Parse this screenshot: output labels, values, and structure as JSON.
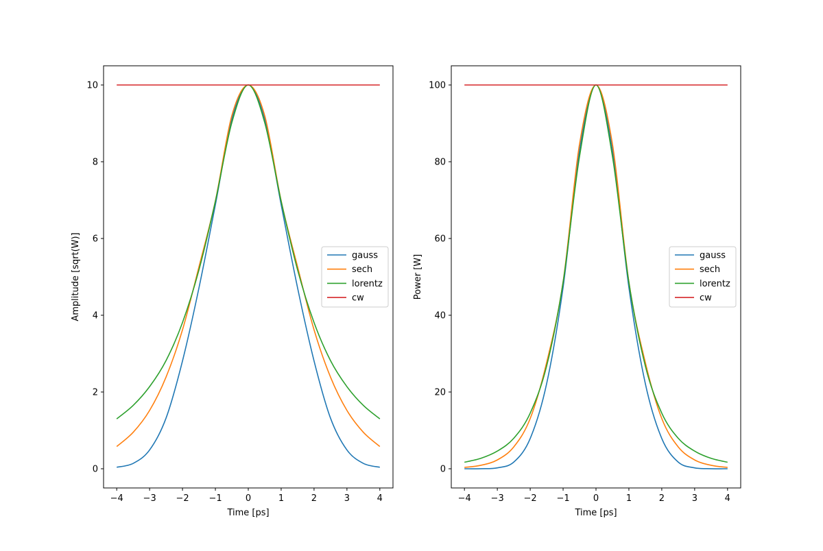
{
  "chart_data": [
    {
      "type": "line",
      "title": "",
      "xlabel": "Time [ps]",
      "ylabel": "Amplitude [sqrt(W)]",
      "xlim": [
        -4.4,
        4.4
      ],
      "ylim": [
        -0.5,
        10.5
      ],
      "xticks": [
        -4,
        -3,
        -2,
        -1,
        0,
        1,
        2,
        3,
        4
      ],
      "yticks": [
        0,
        2,
        4,
        6,
        8,
        10
      ],
      "grid": false,
      "legend_position": "center-right",
      "x": [
        -4,
        -3.5,
        -3,
        -2.5,
        -2,
        -1.5,
        -1,
        -0.5,
        0,
        0.5,
        1,
        1.5,
        2,
        2.5,
        3,
        3.5,
        4
      ],
      "series": [
        {
          "name": "gauss",
          "color": "#1f77b4",
          "values": [
            0.04,
            0.14,
            0.49,
            1.32,
            2.81,
            4.71,
            6.88,
            9.11,
            10,
            9.11,
            6.88,
            4.71,
            2.81,
            1.32,
            0.49,
            0.14,
            0.04
          ]
        },
        {
          "name": "sech",
          "color": "#ff7f0e",
          "values": [
            0.58,
            0.95,
            1.52,
            2.39,
            3.62,
            5.26,
            6.98,
            9.2,
            10,
            9.2,
            6.98,
            5.26,
            3.62,
            2.39,
            1.52,
            0.95,
            0.58
          ]
        },
        {
          "name": "lorentz",
          "color": "#2ca02c",
          "values": [
            1.3,
            1.65,
            2.14,
            2.82,
            3.81,
            5.18,
            6.97,
            9.02,
            10,
            9.02,
            6.97,
            5.18,
            3.81,
            2.82,
            2.14,
            1.65,
            1.3
          ]
        },
        {
          "name": "cw",
          "color": "#d62728",
          "values": [
            10,
            10,
            10,
            10,
            10,
            10,
            10,
            10,
            10,
            10,
            10,
            10,
            10,
            10,
            10,
            10,
            10
          ]
        }
      ]
    },
    {
      "type": "line",
      "title": "",
      "xlabel": "Time [ps]",
      "ylabel": "Power [W]",
      "xlim": [
        -4.4,
        4.4
      ],
      "ylim": [
        -5,
        105
      ],
      "xticks": [
        -4,
        -3,
        -2,
        -1,
        0,
        1,
        2,
        3,
        4
      ],
      "yticks": [
        0,
        20,
        40,
        60,
        80,
        100
      ],
      "grid": false,
      "legend_position": "center-right",
      "x": [
        -4,
        -3.5,
        -3,
        -2.5,
        -2,
        -1.5,
        -1,
        -0.5,
        0,
        0.5,
        1,
        1.5,
        2,
        2.5,
        3,
        3.5,
        4
      ],
      "series": [
        {
          "name": "gauss",
          "color": "#1f77b4",
          "values": [
            0.0,
            0.02,
            0.24,
            1.74,
            7.9,
            22.2,
            47.3,
            82.9,
            100,
            82.9,
            47.3,
            22.2,
            7.9,
            1.74,
            0.24,
            0.02,
            0.0
          ]
        },
        {
          "name": "sech",
          "color": "#ff7f0e",
          "values": [
            0.34,
            0.9,
            2.3,
            5.7,
            13.1,
            27.7,
            48.7,
            84.6,
            100,
            84.6,
            48.7,
            27.7,
            13.1,
            5.7,
            2.3,
            0.9,
            0.34
          ]
        },
        {
          "name": "lorentz",
          "color": "#2ca02c",
          "values": [
            1.7,
            2.72,
            4.6,
            7.95,
            14.5,
            26.8,
            48.6,
            81.4,
            100,
            81.4,
            48.6,
            26.8,
            14.5,
            7.95,
            4.6,
            2.72,
            1.7
          ]
        },
        {
          "name": "cw",
          "color": "#d62728",
          "values": [
            100,
            100,
            100,
            100,
            100,
            100,
            100,
            100,
            100,
            100,
            100,
            100,
            100,
            100,
            100,
            100,
            100
          ]
        }
      ]
    }
  ]
}
